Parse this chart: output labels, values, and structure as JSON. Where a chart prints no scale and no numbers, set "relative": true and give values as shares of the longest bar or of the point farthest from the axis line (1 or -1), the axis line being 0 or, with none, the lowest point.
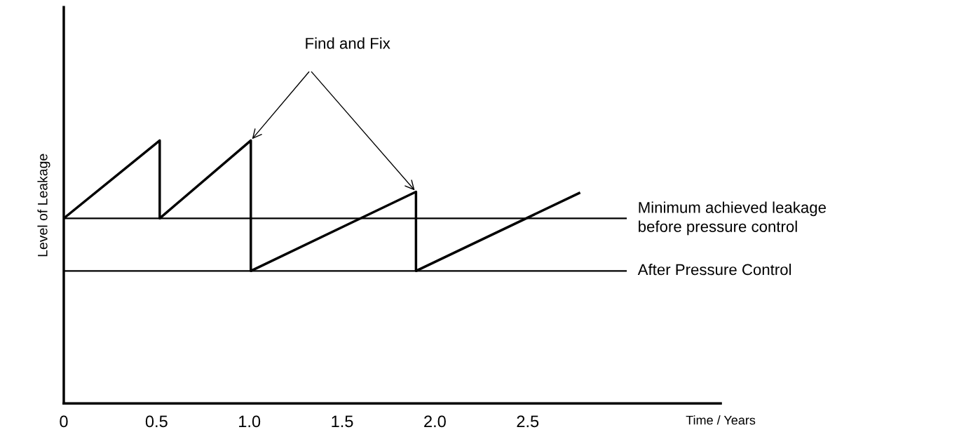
{
  "chart_data": {
    "type": "line",
    "relative": true,
    "xlabel": "Time / Years",
    "ylabel": "Level of Leakage",
    "xlim": [
      0,
      3.54
    ],
    "xticks": [
      0,
      0.5,
      {
        "value": 1,
        "label": "1.0"
      },
      1.5,
      {
        "value": 2,
        "label": "2.0"
      },
      2.5
    ],
    "series": [
      {
        "color": "#000000",
        "x": [
          0,
          0.517,
          0.517,
          1.008,
          1.008,
          1.898,
          1.898,
          2.777
        ],
        "values": [
          0.704,
          1,
          0.704,
          1,
          0.504,
          0.805,
          0.504,
          0.8
        ]
      },
      {
        "color": "#000000",
        "x": [
          0,
          3.03
        ],
        "values": [
          0.704,
          0.704
        ]
      },
      {
        "color": "#000000",
        "x": [
          0,
          3.03
        ],
        "values": [
          0.504,
          0.504
        ]
      }
    ],
    "annotations": [
      "Find and Fix",
      {
        "text": "Minimum achieved leakage\nbefore pressure control",
        "x": 3.03,
        "y": 0.704
      },
      {
        "text": "After Pressure Control",
        "x": 3.03,
        "y": 0.504
      }
    ],
    "grid": false,
    "legend": false,
    "marker": "none",
    "line_style": "solid"
  }
}
